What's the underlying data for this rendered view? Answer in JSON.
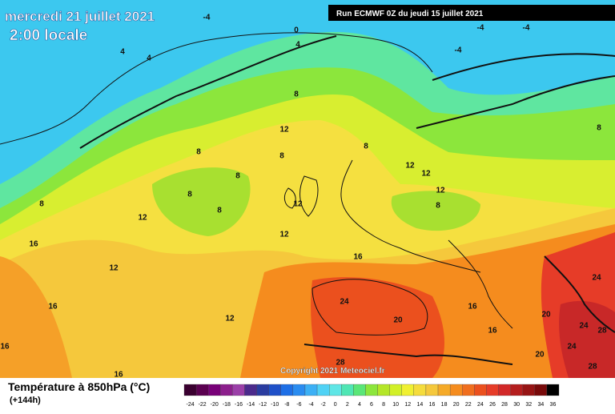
{
  "header": {
    "date": "mercredi 21 juillet 2021",
    "time": "2:00 locale",
    "run": "Run ECMWF 0Z du jeudi 15 juillet 2021",
    "copyright": "Copyright 2021 Meteociel.fr"
  },
  "legend": {
    "title": "Température à 850hPa (°C)",
    "lead": "(+144h)",
    "scale": [
      -24,
      -22,
      -20,
      -18,
      -16,
      -14,
      -12,
      -10,
      -8,
      -6,
      -4,
      -2,
      0,
      2,
      4,
      6,
      8,
      10,
      12,
      14,
      16,
      18,
      20,
      22,
      24,
      26,
      28,
      30,
      32,
      34,
      36
    ]
  },
  "contour_labels": [
    -4,
    0,
    4,
    4,
    4,
    -4,
    -4,
    -4,
    8,
    12,
    8,
    8,
    8,
    12,
    12,
    8,
    8,
    8,
    8,
    12,
    8,
    12,
    8,
    12,
    12,
    16,
    16,
    12,
    24,
    24,
    16,
    16,
    20,
    20,
    12,
    24,
    28,
    16,
    24,
    16,
    20,
    28,
    28,
    16
  ]
}
